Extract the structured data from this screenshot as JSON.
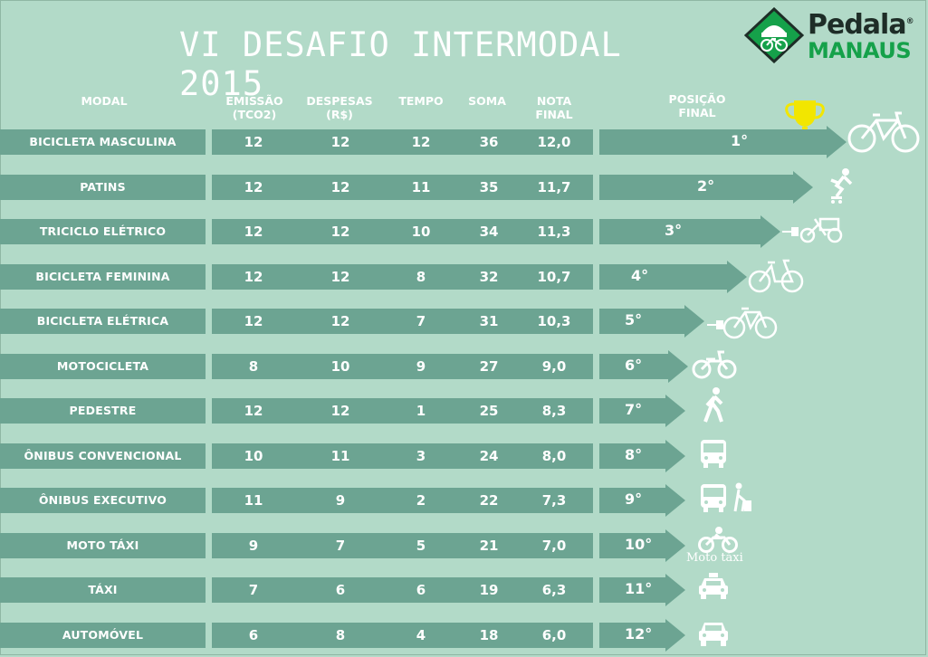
{
  "title": "VI DESAFIO INTERMODAL 2015",
  "logo": {
    "word1": "Pedala",
    "registered": "®",
    "word2": "MANAUS"
  },
  "headers": {
    "modal": "MODAL",
    "emissao": "EMISSÃO\n(tCO2)",
    "despesas": "DESPESAS\n(R$)",
    "tempo": "TEMPO",
    "soma": "SOMA",
    "nota": "NOTA\nFINAL",
    "posicao": "POSIÇÃO\nFINAL"
  },
  "trophy_label": "1",
  "moto_caption": "Moto táxi",
  "rows": [
    {
      "modal": "BICICLETA MASCULINA",
      "emissao": "12",
      "despesas": "12",
      "tempo": "12",
      "soma": "36",
      "nota": "12,0",
      "posicao": "1°",
      "icon": "bicycle-icon"
    },
    {
      "modal": "PATINS",
      "emissao": "12",
      "despesas": "12",
      "tempo": "11",
      "soma": "35",
      "nota": "11,7",
      "posicao": "2°",
      "icon": "rollerblade-icon"
    },
    {
      "modal": "TRICICLO ELÉTRICO",
      "emissao": "12",
      "despesas": "12",
      "tempo": "10",
      "soma": "34",
      "nota": "11,3",
      "posicao": "3°",
      "icon": "electric-tricycle-icon"
    },
    {
      "modal": "BICICLETA FEMININA",
      "emissao": "12",
      "despesas": "12",
      "tempo": "8",
      "soma": "32",
      "nota": "10,7",
      "posicao": "4°",
      "icon": "womens-bicycle-icon"
    },
    {
      "modal": "BICICLETA ELÉTRICA",
      "emissao": "12",
      "despesas": "12",
      "tempo": "7",
      "soma": "31",
      "nota": "10,3",
      "posicao": "5°",
      "icon": "electric-bicycle-icon"
    },
    {
      "modal": "MOTOCICLETA",
      "emissao": "8",
      "despesas": "10",
      "tempo": "9",
      "soma": "27",
      "nota": "9,0",
      "posicao": "6°",
      "icon": "motorcycle-icon"
    },
    {
      "modal": "PEDESTRE",
      "emissao": "12",
      "despesas": "12",
      "tempo": "1",
      "soma": "25",
      "nota": "8,3",
      "posicao": "7°",
      "icon": "pedestrian-icon"
    },
    {
      "modal": "ÔNIBUS CONVENCIONAL",
      "emissao": "10",
      "despesas": "11",
      "tempo": "3",
      "soma": "24",
      "nota": "8,0",
      "posicao": "8°",
      "icon": "bus-icon"
    },
    {
      "modal": "ÔNIBUS EXECUTIVO",
      "emissao": "11",
      "despesas": "9",
      "tempo": "2",
      "soma": "22",
      "nota": "7,3",
      "posicao": "9°",
      "icon": "executive-bus-icon"
    },
    {
      "modal": "MOTO TÁXI",
      "emissao": "9",
      "despesas": "7",
      "tempo": "5",
      "soma": "21",
      "nota": "7,0",
      "posicao": "10°",
      "icon": "moto-taxi-icon"
    },
    {
      "modal": "TÁXI",
      "emissao": "7",
      "despesas": "6",
      "tempo": "6",
      "soma": "19",
      "nota": "6,3",
      "posicao": "11°",
      "icon": "taxi-icon"
    },
    {
      "modal": "AUTOMÓVEL",
      "emissao": "6",
      "despesas": "8",
      "tempo": "4",
      "soma": "18",
      "nota": "6,0",
      "posicao": "12°",
      "icon": "car-icon"
    }
  ],
  "colors": {
    "background": "#b2dac8",
    "bar": "#6ca492",
    "text": "#ffffff",
    "logo_green": "#15a14a",
    "trophy": "#f2e600"
  }
}
